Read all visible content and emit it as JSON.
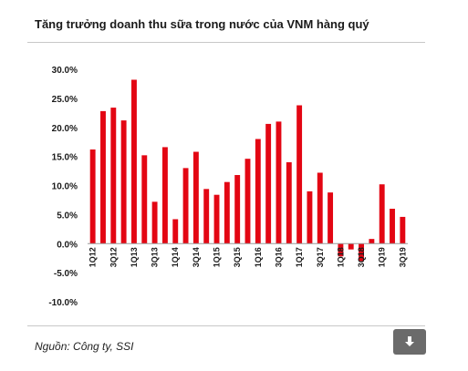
{
  "title": "Tăng trưởng doanh thu sữa trong nước của VNM hàng quý",
  "source": "Nguồn: Công ty, SSI",
  "download": {
    "icon": "download-arrow-icon"
  },
  "chart_data": {
    "type": "bar",
    "title": "Tăng trưởng doanh thu sữa trong nước của VNM hàng quý",
    "xlabel": "",
    "ylabel": "",
    "ylim": [
      -10,
      30
    ],
    "ytick_step": 5,
    "ytick_labels": [
      "30.0%",
      "25.0%",
      "20.0%",
      "15.0%",
      "10.0%",
      "5.0%",
      "0.0%",
      "-5.0%",
      "-10.0%"
    ],
    "grid": false,
    "legend": "none",
    "color": "#e30613",
    "categories": [
      "1Q12",
      "2Q12",
      "3Q12",
      "4Q12",
      "1Q13",
      "2Q13",
      "3Q13",
      "4Q13",
      "1Q14",
      "2Q14",
      "3Q14",
      "4Q14",
      "1Q15",
      "2Q15",
      "3Q15",
      "4Q15",
      "1Q16",
      "2Q16",
      "3Q16",
      "4Q16",
      "1Q17",
      "2Q17",
      "3Q17",
      "4Q17",
      "1Q18",
      "2Q18",
      "3Q18",
      "4Q18",
      "1Q19",
      "2Q19",
      "3Q19"
    ],
    "tick_labels": [
      "1Q12",
      "",
      "3Q12",
      "",
      "1Q13",
      "",
      "3Q13",
      "",
      "1Q14",
      "",
      "3Q14",
      "",
      "1Q15",
      "",
      "3Q15",
      "",
      "1Q16",
      "",
      "3Q16",
      "",
      "1Q17",
      "",
      "3Q17",
      "",
      "1Q18",
      "",
      "3Q18",
      "",
      "1Q19",
      "",
      "3Q19"
    ],
    "values": [
      16.2,
      22.8,
      23.4,
      21.2,
      28.2,
      15.2,
      7.2,
      16.6,
      4.2,
      13.0,
      15.8,
      9.4,
      8.4,
      10.6,
      11.8,
      14.6,
      18.0,
      20.6,
      21.0,
      14.0,
      23.8,
      9.0,
      12.2,
      8.8,
      -2.2,
      -1.0,
      -3.0,
      0.8,
      10.2,
      6.0,
      4.6
    ]
  }
}
